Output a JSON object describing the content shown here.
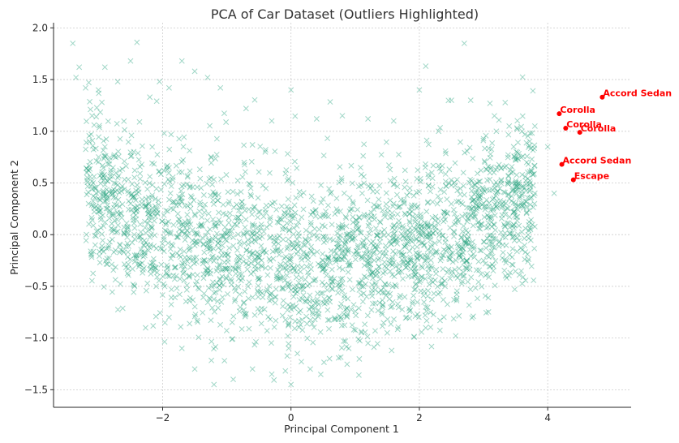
{
  "chart_data": {
    "type": "scatter",
    "title": "PCA of Car Dataset (Outliers Highlighted)",
    "xlabel": "Principal Component 1",
    "ylabel": "Principal Component 2",
    "xlim": [
      -3.7,
      5.3
    ],
    "ylim": [
      -1.67,
      2.05
    ],
    "grid": true,
    "x_ticks": [
      {
        "value": -2,
        "label": "−2"
      },
      {
        "value": 0,
        "label": "0"
      },
      {
        "value": 2,
        "label": "2"
      },
      {
        "value": 4,
        "label": "4"
      }
    ],
    "y_ticks": [
      {
        "value": -1.5,
        "label": "−1.5"
      },
      {
        "value": -1.0,
        "label": "−1.0"
      },
      {
        "value": -0.5,
        "label": "−0.5"
      },
      {
        "value": 0.0,
        "label": "0.0"
      },
      {
        "value": 0.5,
        "label": "0.5"
      },
      {
        "value": 1.0,
        "label": "1.0"
      },
      {
        "value": 1.5,
        "label": "1.5"
      },
      {
        "value": 2.0,
        "label": "2.0"
      }
    ],
    "colors": {
      "points": "#1a9e77",
      "outliers": "#ff0000",
      "grid": "#cccccc",
      "axes": "#262626"
    },
    "series": [
      {
        "marker": "x",
        "sample_points": [
          [
            -3.4,
            1.85
          ],
          [
            -3.35,
            1.52
          ],
          [
            -3.3,
            1.62
          ],
          [
            -3.2,
            1.42
          ],
          [
            -3.0,
            1.4
          ],
          [
            -2.9,
            1.62
          ],
          [
            -2.7,
            1.48
          ],
          [
            -2.5,
            1.68
          ],
          [
            -2.4,
            1.86
          ],
          [
            -2.2,
            1.33
          ],
          [
            -2.05,
            1.48
          ],
          [
            -1.9,
            1.42
          ],
          [
            -1.7,
            1.68
          ],
          [
            -1.5,
            1.58
          ],
          [
            -1.3,
            1.52
          ],
          [
            -1.1,
            1.42
          ],
          [
            -0.7,
            1.22
          ],
          [
            -0.3,
            1.1
          ],
          [
            0.0,
            1.4
          ],
          [
            0.4,
            1.12
          ],
          [
            0.8,
            1.15
          ],
          [
            1.2,
            1.12
          ],
          [
            1.6,
            1.1
          ],
          [
            2.0,
            1.4
          ],
          [
            2.1,
            1.63
          ],
          [
            2.3,
            1.0
          ],
          [
            2.5,
            1.3
          ],
          [
            2.7,
            1.85
          ],
          [
            2.8,
            1.3
          ],
          [
            3.1,
            1.27
          ],
          [
            3.2,
            1.0
          ],
          [
            3.4,
            1.05
          ],
          [
            3.6,
            1.0
          ],
          [
            3.8,
            1.05
          ],
          [
            4.0,
            0.85
          ],
          [
            4.1,
            0.4
          ],
          [
            3.8,
            0.4
          ],
          [
            3.5,
            0.3
          ],
          [
            3.3,
            -0.1
          ],
          [
            3.0,
            -0.25
          ],
          [
            2.7,
            -0.4
          ],
          [
            2.4,
            -0.5
          ],
          [
            2.1,
            -0.7
          ],
          [
            1.8,
            -0.8
          ],
          [
            1.5,
            -0.95
          ],
          [
            1.2,
            -1.05
          ],
          [
            0.9,
            -1.1
          ],
          [
            0.6,
            -1.2
          ],
          [
            0.3,
            -1.3
          ],
          [
            0.0,
            -1.45
          ],
          [
            -0.3,
            -1.35
          ],
          [
            -0.6,
            -1.3
          ],
          [
            -0.9,
            -1.4
          ],
          [
            -1.2,
            -1.45
          ],
          [
            -1.5,
            -1.3
          ],
          [
            -1.7,
            -1.1
          ],
          [
            -1.9,
            -0.8
          ],
          [
            -2.1,
            -0.5
          ],
          [
            -2.3,
            -0.1
          ],
          [
            -2.5,
            0.3
          ],
          [
            -2.7,
            0.55
          ],
          [
            -2.9,
            0.85
          ],
          [
            -3.1,
            1.15
          ]
        ]
      }
    ],
    "outliers": [
      {
        "label": "Accord Sedan",
        "x": 4.85,
        "y": 1.33
      },
      {
        "label": "Corolla",
        "x": 4.18,
        "y": 1.17
      },
      {
        "label": "Corolla",
        "x": 4.28,
        "y": 1.03
      },
      {
        "label": "Corolla",
        "x": 4.5,
        "y": 0.99
      },
      {
        "label": "Accord Sedan",
        "x": 4.22,
        "y": 0.68
      },
      {
        "label": "Escape",
        "x": 4.4,
        "y": 0.53
      }
    ]
  }
}
